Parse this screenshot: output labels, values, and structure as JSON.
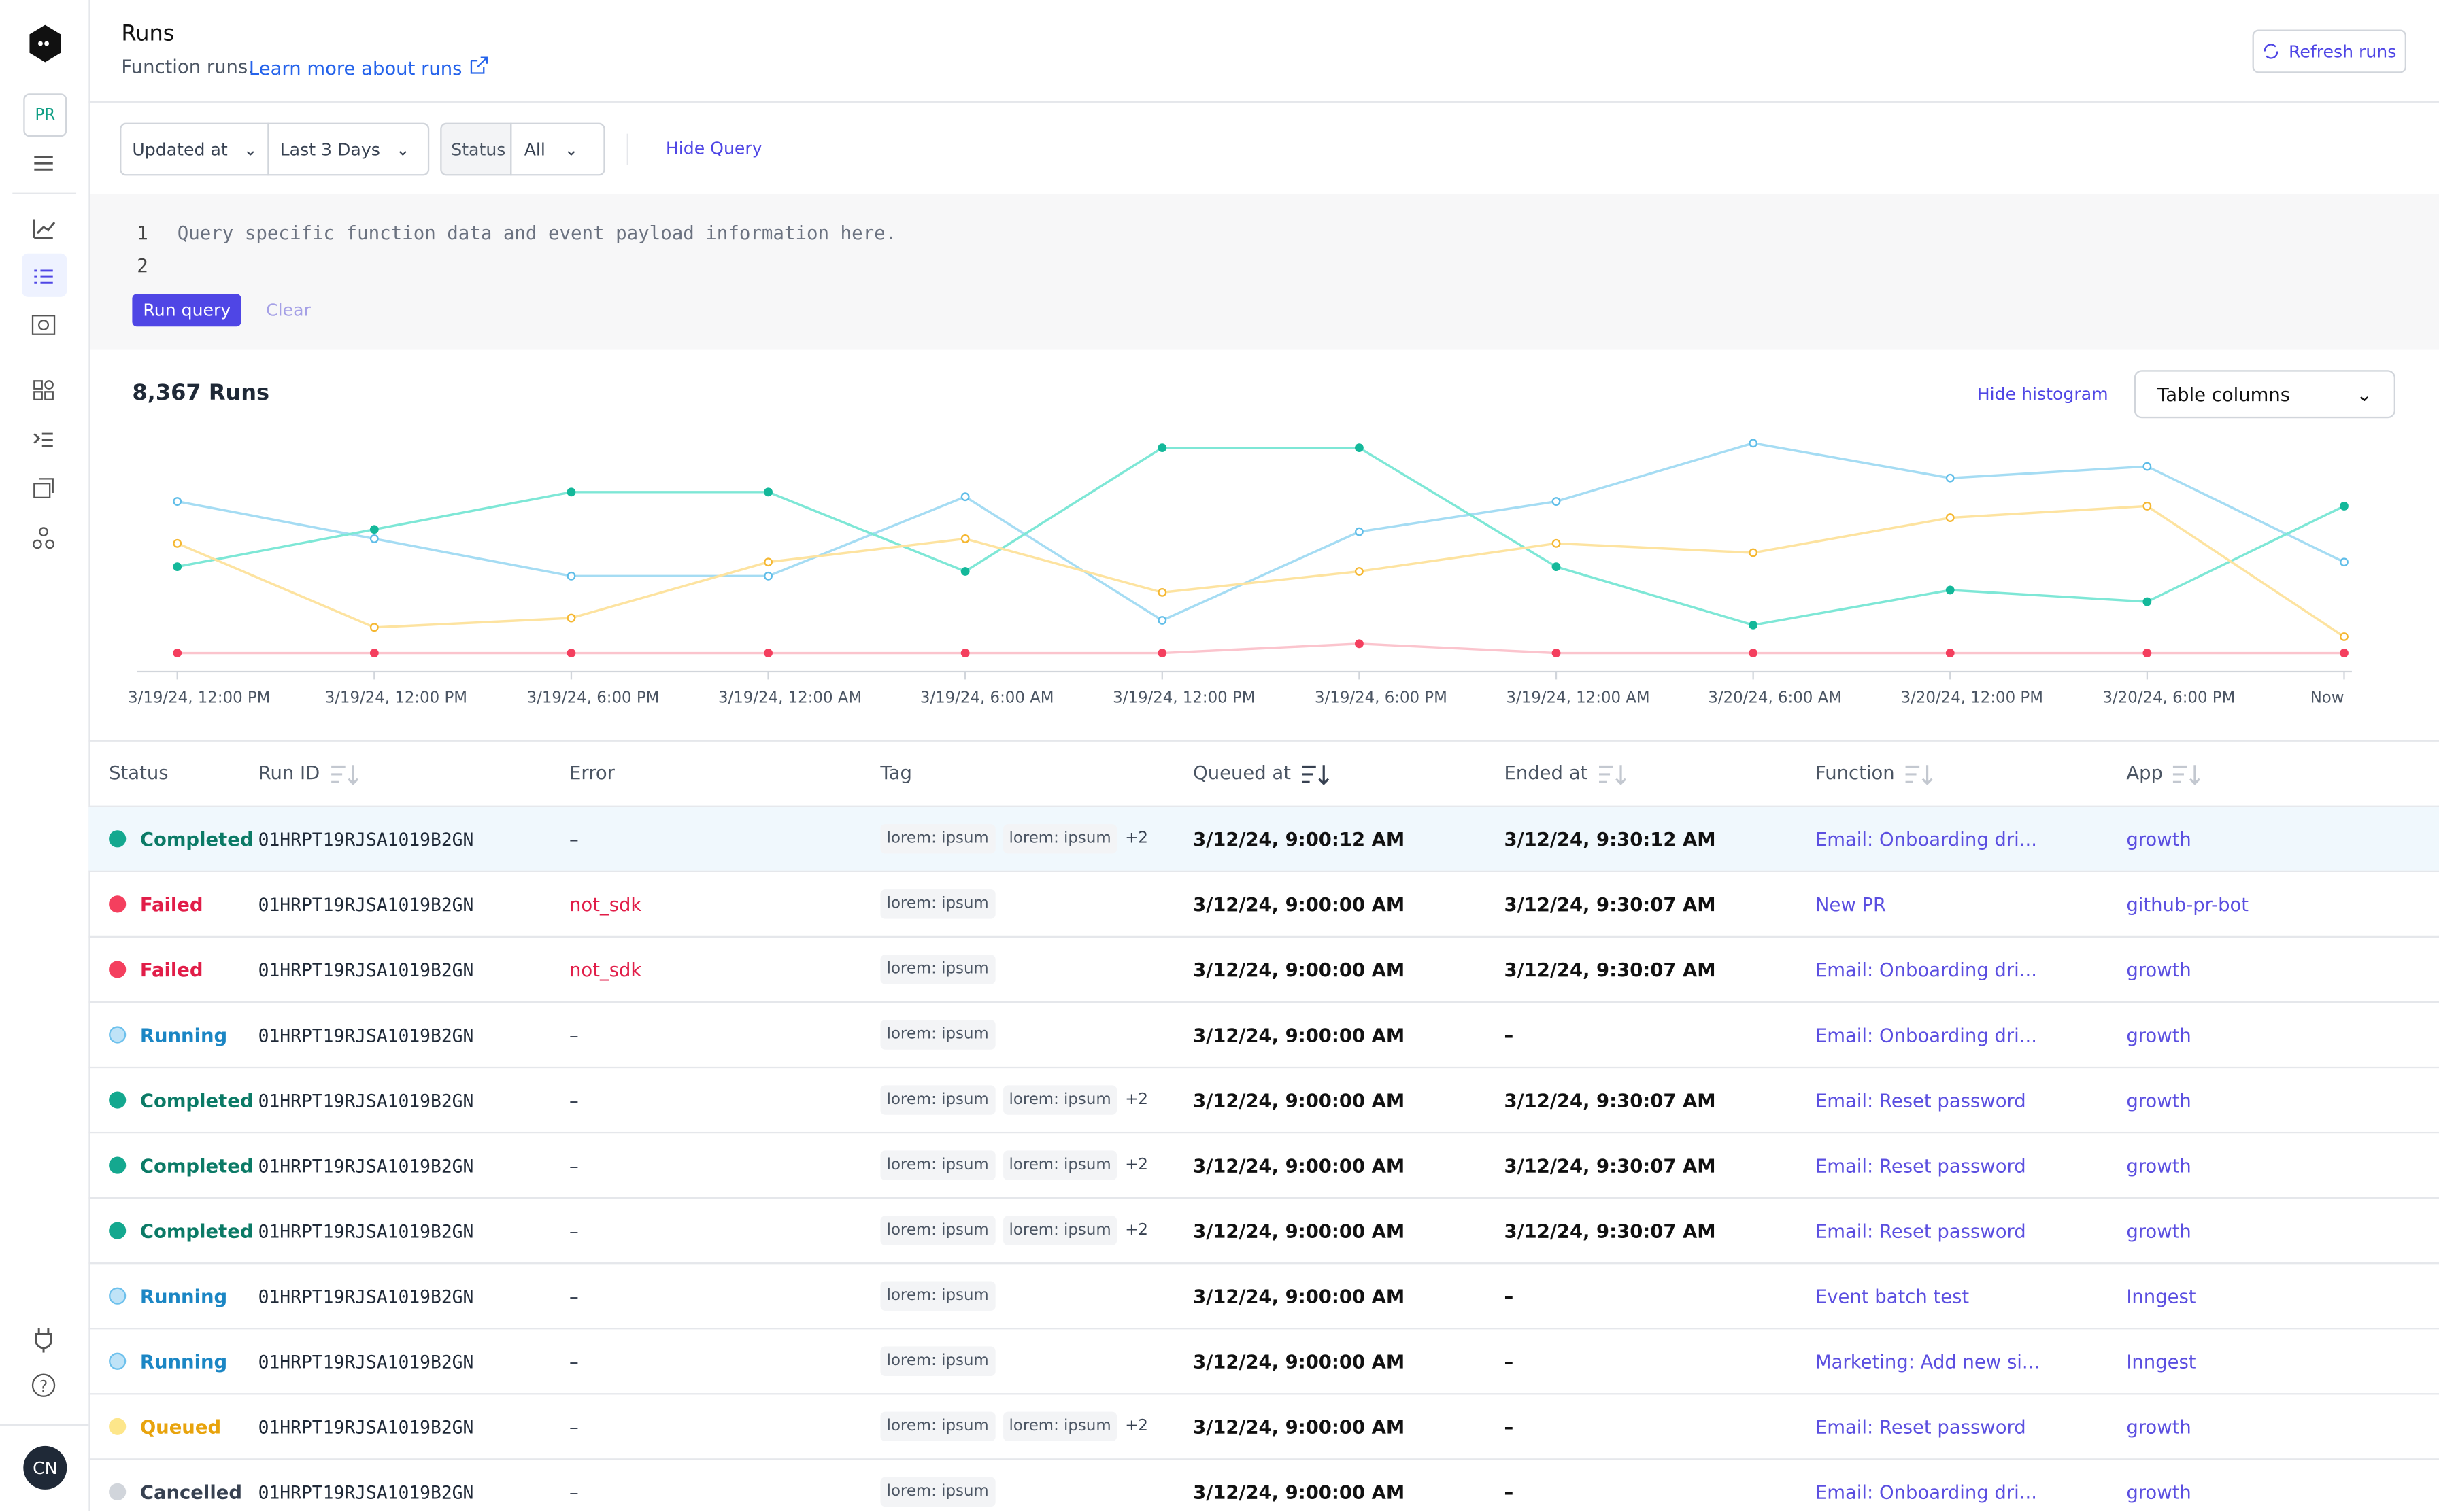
{
  "sidebar": {
    "project": "PR",
    "user": "CN"
  },
  "header": {
    "title": "Runs",
    "subtitle": "Function runs.",
    "link": "Learn more about runs",
    "refresh": "Refresh runs"
  },
  "filters": {
    "time_field": "Updated at",
    "time_range": "Last 3 Days",
    "status_label": "Status",
    "status_value": "All",
    "toggle_query": "Hide Query"
  },
  "query": {
    "line_numbers": [
      "1",
      "2"
    ],
    "placeholder": "Query specific function data and event payload information here.",
    "run": "Run query",
    "clear": "Clear"
  },
  "results": {
    "count": "8,367 Runs",
    "hide_histogram": "Hide histogram",
    "columns_button": "Table columns"
  },
  "chart_data": {
    "type": "line",
    "x": [
      "3/19/24, 12:00 PM",
      "3/19/24, 12:00 PM",
      "3/19/24, 6:00 PM",
      "3/19/24, 12:00 AM",
      "3/19/24, 6:00 AM",
      "3/19/24, 12:00 PM",
      "3/19/24, 6:00 PM",
      "3/19/24, 12:00 AM",
      "3/20/24, 6:00 AM",
      "3/20/24, 12:00 PM",
      "3/20/24, 6:00 PM",
      "Now"
    ],
    "ylim": [
      0,
      100
    ],
    "series": [
      {
        "color": "#a5dcf3",
        "fill": "#ffffff",
        "values": [
          73,
          57,
          41,
          41,
          75,
          22,
          60,
          73,
          98,
          83,
          88,
          47
        ]
      },
      {
        "color": "#7ee7d6",
        "fill": "#14b89a",
        "values": [
          45,
          61,
          77,
          77,
          43,
          96,
          96,
          45,
          20,
          35,
          30,
          71
        ]
      },
      {
        "color": "#fde3a0",
        "fill": "#ffffff",
        "values": [
          55,
          19,
          23,
          47,
          57,
          34,
          43,
          55,
          51,
          66,
          71,
          15
        ]
      },
      {
        "color": "#fbc4cd",
        "fill": "#f43f5e",
        "values": [
          8,
          8,
          8,
          8,
          8,
          8,
          12,
          8,
          8,
          8,
          8,
          8
        ]
      }
    ]
  },
  "table": {
    "columns": [
      "Status",
      "Run ID",
      "Error",
      "Tag",
      "Queued at",
      "Ended at",
      "Function",
      "App"
    ],
    "rows": [
      {
        "status": "Completed",
        "status_color": "#14a88f",
        "text_color": "#0b7a66",
        "run_id": "01HRPT19RJSA1019B2GN",
        "error": "–",
        "tags": [
          "lorem: ipsum",
          "lorem: ipsum"
        ],
        "more": "+2",
        "queued": "3/12/24, 9:00:12 AM",
        "ended": "3/12/24, 9:30:12 AM",
        "function": "Email: Onboarding dri...",
        "app": "growth"
      },
      {
        "status": "Failed",
        "status_color": "#f43f5e",
        "text_color": "#e11d48",
        "run_id": "01HRPT19RJSA1019B2GN",
        "error": "not_sdk",
        "tags": [
          "lorem: ipsum"
        ],
        "queued": "3/12/24, 9:00:00 AM",
        "ended": "3/12/24, 9:30:07 AM",
        "function": "New PR",
        "app": "github-pr-bot"
      },
      {
        "status": "Failed",
        "status_color": "#f43f5e",
        "text_color": "#e11d48",
        "run_id": "01HRPT19RJSA1019B2GN",
        "error": "not_sdk",
        "tags": [
          "lorem: ipsum"
        ],
        "queued": "3/12/24, 9:00:00 AM",
        "ended": "3/12/24, 9:30:07 AM",
        "function": "Email: Onboarding dri...",
        "app": "growth"
      },
      {
        "status": "Running",
        "status_color": "#bfe3f7",
        "text_color": "#1b86c4",
        "run_id": "01HRPT19RJSA1019B2GN",
        "error": "–",
        "tags": [
          "lorem: ipsum"
        ],
        "queued": "3/12/24, 9:00:00 AM",
        "ended": "–",
        "function": "Email: Onboarding dri...",
        "app": "growth"
      },
      {
        "status": "Completed",
        "status_color": "#14a88f",
        "text_color": "#0b7a66",
        "run_id": "01HRPT19RJSA1019B2GN",
        "error": "–",
        "tags": [
          "lorem: ipsum",
          "lorem: ipsum"
        ],
        "more": "+2",
        "queued": "3/12/24, 9:00:00 AM",
        "ended": "3/12/24, 9:30:07 AM",
        "function": "Email: Reset password",
        "app": "growth"
      },
      {
        "status": "Completed",
        "status_color": "#14a88f",
        "text_color": "#0b7a66",
        "run_id": "01HRPT19RJSA1019B2GN",
        "error": "–",
        "tags": [
          "lorem: ipsum",
          "lorem: ipsum"
        ],
        "more": "+2",
        "queued": "3/12/24, 9:00:00 AM",
        "ended": "3/12/24, 9:30:07 AM",
        "function": "Email: Reset password",
        "app": "growth"
      },
      {
        "status": "Completed",
        "status_color": "#14a88f",
        "text_color": "#0b7a66",
        "run_id": "01HRPT19RJSA1019B2GN",
        "error": "–",
        "tags": [
          "lorem: ipsum",
          "lorem: ipsum"
        ],
        "more": "+2",
        "queued": "3/12/24, 9:00:00 AM",
        "ended": "3/12/24, 9:30:07 AM",
        "function": "Email: Reset password",
        "app": "growth"
      },
      {
        "status": "Running",
        "status_color": "#bfe3f7",
        "text_color": "#1b86c4",
        "run_id": "01HRPT19RJSA1019B2GN",
        "error": "–",
        "tags": [
          "lorem: ipsum"
        ],
        "queued": "3/12/24, 9:00:00 AM",
        "ended": "–",
        "function": "Event batch test",
        "app": "Inngest"
      },
      {
        "status": "Running",
        "status_color": "#bfe3f7",
        "text_color": "#1b86c4",
        "run_id": "01HRPT19RJSA1019B2GN",
        "error": "–",
        "tags": [
          "lorem: ipsum"
        ],
        "queued": "3/12/24, 9:00:00 AM",
        "ended": "–",
        "function": "Marketing: Add new si...",
        "app": "Inngest"
      },
      {
        "status": "Queued",
        "status_color": "#fde68a",
        "text_color": "#e8a30c",
        "run_id": "01HRPT19RJSA1019B2GN",
        "error": "–",
        "tags": [
          "lorem: ipsum",
          "lorem: ipsum"
        ],
        "more": "+2",
        "queued": "3/12/24, 9:00:00 AM",
        "ended": "–",
        "function": "Email: Reset password",
        "app": "growth"
      },
      {
        "status": "Cancelled",
        "status_color": "#d1d5db",
        "text_color": "#374151",
        "run_id": "01HRPT19RJSA1019B2GN",
        "error": "–",
        "tags": [
          "lorem: ipsum"
        ],
        "queued": "3/12/24, 9:00:00 AM",
        "ended": "–",
        "function": "Email: Onboarding dri...",
        "app": "growth"
      }
    ]
  }
}
